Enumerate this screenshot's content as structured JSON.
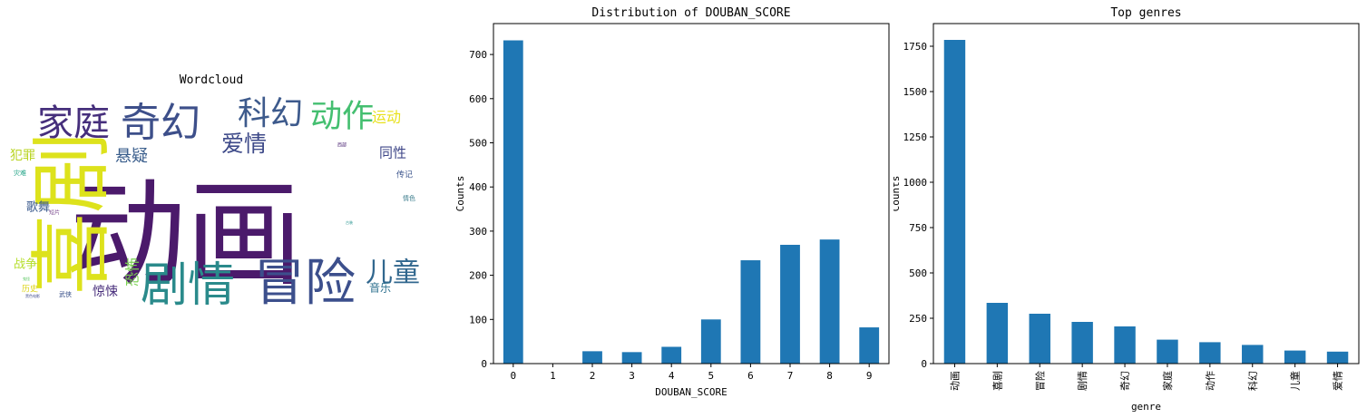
{
  "wordcloud": {
    "title": "Wordcloud",
    "words": [
      {
        "text": "动画",
        "color": "#4b1a6b"
      },
      {
        "text": "喜剧",
        "color": "#dde21c"
      },
      {
        "text": "冒险",
        "color": "#3c4f8c"
      },
      {
        "text": "剧情",
        "color": "#2a8a8b"
      },
      {
        "text": "家庭",
        "color": "#462f7c"
      },
      {
        "text": "奇幻",
        "color": "#3d4f8a"
      },
      {
        "text": "科幻",
        "color": "#3d5a8c"
      },
      {
        "text": "动作",
        "color": "#44bf70"
      },
      {
        "text": "爱情",
        "color": "#3e4a89"
      },
      {
        "text": "儿童",
        "color": "#31678e"
      },
      {
        "text": "运动",
        "color": "#e8e11d"
      },
      {
        "text": "悬疑",
        "color": "#3a5e8c"
      },
      {
        "text": "同性",
        "color": "#3f4788"
      },
      {
        "text": "犯罪",
        "color": "#b9d422"
      },
      {
        "text": "传记",
        "color": "#3a538b"
      },
      {
        "text": "恐怖",
        "color": "#7ad151"
      },
      {
        "text": "惊悚",
        "color": "#472d7b"
      },
      {
        "text": "音乐",
        "color": "#2d708e"
      },
      {
        "text": "战争",
        "color": "#b5de2b"
      },
      {
        "text": "歌舞",
        "color": "#38588c"
      },
      {
        "text": "灾难",
        "color": "#20a386"
      },
      {
        "text": "短片",
        "color": "#7e4e90"
      },
      {
        "text": "历史",
        "color": "#ddd41a"
      },
      {
        "text": "武侠",
        "color": "#3b528b"
      },
      {
        "text": "情色",
        "color": "#3b7c8c"
      },
      {
        "text": "西部",
        "color": "#482071"
      },
      {
        "text": "黑色电影",
        "color": "#3f4a8a"
      },
      {
        "text": "古装",
        "color": "#21918c"
      },
      {
        "text": "鬼怪",
        "color": "#5cc863"
      }
    ]
  },
  "chart_data": [
    {
      "type": "bar",
      "title": "Distribution of DOUBAN_SCORE",
      "xlabel": "DOUBAN_SCORE",
      "ylabel": "Counts",
      "categories": [
        "0",
        "1",
        "2",
        "3",
        "4",
        "5",
        "6",
        "7",
        "8",
        "9"
      ],
      "values": [
        732,
        0,
        28,
        26,
        38,
        100,
        234,
        269,
        281,
        82
      ],
      "ylim": [
        0,
        770
      ],
      "yticks": [
        0,
        100,
        200,
        300,
        400,
        500,
        600,
        700
      ],
      "ytick_labels": [
        "0",
        "100",
        "200",
        "300",
        "400",
        "500",
        "600",
        "700"
      ],
      "bar_color": "#1f77b4",
      "grid": false,
      "xtick_rotation": 0
    },
    {
      "type": "bar",
      "title": "Top genres",
      "xlabel": "genre",
      "ylabel": "Counts",
      "categories": [
        "动画",
        "喜剧",
        "冒险",
        "剧情",
        "奇幻",
        "家庭",
        "动作",
        "科幻",
        "儿童",
        "爱情"
      ],
      "values": [
        1785,
        335,
        275,
        230,
        205,
        132,
        118,
        103,
        72,
        66
      ],
      "ylim": [
        0,
        1875
      ],
      "yticks": [
        0,
        250,
        500,
        750,
        1000,
        1250,
        1500,
        1750
      ],
      "ytick_labels": [
        "0",
        "250",
        "500",
        "750",
        "1000",
        "1250",
        "1500",
        "1750"
      ],
      "bar_color": "#1f77b4",
      "grid": false,
      "xtick_rotation": -90
    }
  ]
}
